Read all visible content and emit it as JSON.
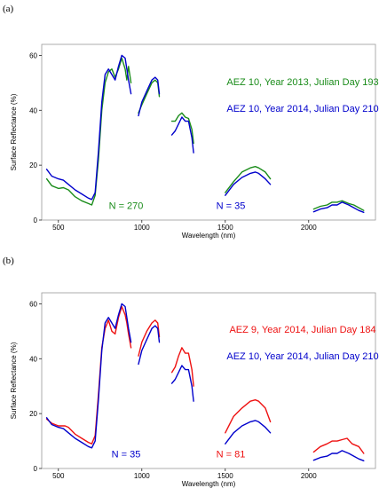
{
  "chart_data": [
    {
      "type": "line",
      "panel_label": "(a)",
      "xlabel": "Wavelength (nm)",
      "ylabel": "Surface Reflectance (%)",
      "xlim": [
        400,
        2400
      ],
      "ylim": [
        0,
        64
      ],
      "xticks": [
        500,
        1000,
        1500,
        2000
      ],
      "yticks": [
        0,
        20,
        40,
        60
      ],
      "series": [
        {
          "name": "AEZ 10, Year 2013, Julian Day 193",
          "color": "#1a8c1a",
          "segments": [
            [
              [
                430,
                15
              ],
              [
                460,
                12.5
              ],
              [
                500,
                11.5
              ],
              [
                530,
                11.8
              ],
              [
                560,
                11
              ],
              [
                600,
                8.5
              ],
              [
                640,
                7
              ],
              [
                680,
                6
              ],
              [
                700,
                5.5
              ],
              [
                720,
                9
              ],
              [
                740,
                22
              ],
              [
                760,
                40
              ],
              [
                780,
                50
              ],
              [
                800,
                54
              ],
              [
                820,
                55
              ],
              [
                840,
                52
              ],
              [
                860,
                55
              ],
              [
                880,
                59
              ],
              [
                900,
                55
              ],
              [
                910,
                51
              ],
              [
                920,
                56
              ],
              [
                935,
                50
              ]
            ],
            [
              [
                980,
                39
              ],
              [
                1000,
                42
              ],
              [
                1030,
                46
              ],
              [
                1060,
                50
              ],
              [
                1080,
                51
              ],
              [
                1095,
                50
              ],
              [
                1105,
                45
              ]
            ],
            [
              [
                1180,
                36
              ],
              [
                1200,
                36
              ],
              [
                1220,
                38
              ],
              [
                1240,
                39
              ],
              [
                1260,
                37.5
              ],
              [
                1280,
                37
              ],
              [
                1300,
                33
              ],
              [
                1310,
                28
              ]
            ],
            [
              [
                1500,
                10
              ],
              [
                1550,
                14
              ],
              [
                1600,
                17.5
              ],
              [
                1650,
                19
              ],
              [
                1680,
                19.5
              ],
              [
                1700,
                19
              ],
              [
                1740,
                17.5
              ],
              [
                1770,
                15
              ]
            ],
            [
              [
                2030,
                4
              ],
              [
                2070,
                5
              ],
              [
                2110,
                5.5
              ],
              [
                2140,
                6.5
              ],
              [
                2170,
                6.5
              ],
              [
                2200,
                7
              ],
              [
                2240,
                6
              ],
              [
                2270,
                5.5
              ],
              [
                2300,
                4.5
              ],
              [
                2330,
                3.5
              ]
            ]
          ]
        },
        {
          "name": "AEZ 10, Year 2014, Julian Day 210",
          "color": "#0000cc",
          "segments": [
            [
              [
                430,
                18.5
              ],
              [
                460,
                16
              ],
              [
                500,
                15
              ],
              [
                530,
                14.5
              ],
              [
                560,
                13
              ],
              [
                600,
                11
              ],
              [
                640,
                9.5
              ],
              [
                680,
                8
              ],
              [
                700,
                7.5
              ],
              [
                720,
                10
              ],
              [
                740,
                25
              ],
              [
                760,
                43
              ],
              [
                780,
                53
              ],
              [
                800,
                55
              ],
              [
                820,
                53
              ],
              [
                840,
                51
              ],
              [
                860,
                56
              ],
              [
                880,
                60
              ],
              [
                900,
                59
              ],
              [
                910,
                55
              ],
              [
                920,
                51
              ],
              [
                935,
                46
              ]
            ],
            [
              [
                980,
                38
              ],
              [
                1000,
                43
              ],
              [
                1030,
                47
              ],
              [
                1060,
                51
              ],
              [
                1080,
                52
              ],
              [
                1095,
                51
              ],
              [
                1105,
                46
              ]
            ],
            [
              [
                1180,
                31
              ],
              [
                1200,
                32.5
              ],
              [
                1220,
                35
              ],
              [
                1240,
                37.5
              ],
              [
                1260,
                36
              ],
              [
                1280,
                36
              ],
              [
                1300,
                30
              ],
              [
                1310,
                24.5
              ]
            ],
            [
              [
                1500,
                9
              ],
              [
                1550,
                13
              ],
              [
                1600,
                15.5
              ],
              [
                1650,
                17
              ],
              [
                1680,
                17.5
              ],
              [
                1700,
                17
              ],
              [
                1740,
                15
              ],
              [
                1770,
                13
              ]
            ],
            [
              [
                2030,
                3
              ],
              [
                2070,
                4
              ],
              [
                2110,
                4.5
              ],
              [
                2140,
                5.5
              ],
              [
                2170,
                5.5
              ],
              [
                2200,
                6.5
              ],
              [
                2240,
                5.5
              ],
              [
                2270,
                4.5
              ],
              [
                2300,
                3.5
              ],
              [
                2330,
                2.8
              ]
            ]
          ]
        }
      ],
      "annotations": [
        {
          "text": "N = 270",
          "color": "#1a8c1a",
          "x": 840,
          "y": 4
        },
        {
          "text": "N = 35",
          "color": "#0000cc",
          "x": 1490,
          "y": 4
        }
      ]
    },
    {
      "type": "line",
      "panel_label": "(b)",
      "xlabel": "Wavelength (nm)",
      "ylabel": "Surface Reflectance (%)",
      "xlim": [
        400,
        2400
      ],
      "ylim": [
        0,
        64
      ],
      "xticks": [
        500,
        1000,
        1500,
        2000
      ],
      "yticks": [
        0,
        20,
        40,
        60
      ],
      "series": [
        {
          "name": "AEZ 9, Year 2014, Julian Day 184",
          "color": "#ee1111",
          "segments": [
            [
              [
                430,
                18
              ],
              [
                460,
                16.5
              ],
              [
                500,
                15.5
              ],
              [
                540,
                15.5
              ],
              [
                560,
                15
              ],
              [
                600,
                12.5
              ],
              [
                640,
                11
              ],
              [
                680,
                9.5
              ],
              [
                700,
                9
              ],
              [
                720,
                12
              ],
              [
                740,
                27
              ],
              [
                760,
                44
              ],
              [
                780,
                51
              ],
              [
                800,
                54
              ],
              [
                820,
                50
              ],
              [
                840,
                49
              ],
              [
                860,
                55
              ],
              [
                880,
                59
              ],
              [
                900,
                56
              ],
              [
                910,
                53
              ],
              [
                920,
                49
              ],
              [
                935,
                44
              ]
            ],
            [
              [
                980,
                41
              ],
              [
                1000,
                46
              ],
              [
                1030,
                50
              ],
              [
                1060,
                53
              ],
              [
                1080,
                54
              ],
              [
                1095,
                53
              ],
              [
                1105,
                48
              ]
            ],
            [
              [
                1180,
                35
              ],
              [
                1200,
                37
              ],
              [
                1220,
                41
              ],
              [
                1240,
                44
              ],
              [
                1260,
                42
              ],
              [
                1280,
                42
              ],
              [
                1300,
                36
              ],
              [
                1310,
                30
              ]
            ],
            [
              [
                1500,
                13
              ],
              [
                1550,
                19
              ],
              [
                1600,
                22
              ],
              [
                1650,
                24.5
              ],
              [
                1680,
                25
              ],
              [
                1700,
                24.5
              ],
              [
                1740,
                22
              ],
              [
                1770,
                17
              ]
            ],
            [
              [
                2030,
                6
              ],
              [
                2070,
                8
              ],
              [
                2110,
                9
              ],
              [
                2140,
                10
              ],
              [
                2170,
                10
              ],
              [
                2200,
                10.5
              ],
              [
                2230,
                11
              ],
              [
                2260,
                9
              ],
              [
                2300,
                8
              ],
              [
                2330,
                5.5
              ]
            ]
          ]
        },
        {
          "name": "AEZ 10, Year 2014, Julian Day 210",
          "color": "#0000cc",
          "segments": [
            [
              [
                430,
                18.5
              ],
              [
                460,
                16
              ],
              [
                500,
                15
              ],
              [
                530,
                14.5
              ],
              [
                560,
                13
              ],
              [
                600,
                11
              ],
              [
                640,
                9.5
              ],
              [
                680,
                8
              ],
              [
                700,
                7.5
              ],
              [
                720,
                10
              ],
              [
                740,
                25
              ],
              [
                760,
                43
              ],
              [
                780,
                53
              ],
              [
                800,
                55
              ],
              [
                820,
                53
              ],
              [
                840,
                51
              ],
              [
                860,
                56
              ],
              [
                880,
                60
              ],
              [
                900,
                59
              ],
              [
                910,
                55
              ],
              [
                920,
                51
              ],
              [
                935,
                46
              ]
            ],
            [
              [
                980,
                38
              ],
              [
                1000,
                43
              ],
              [
                1030,
                47
              ],
              [
                1060,
                51
              ],
              [
                1080,
                52
              ],
              [
                1095,
                51
              ],
              [
                1105,
                46
              ]
            ],
            [
              [
                1180,
                31
              ],
              [
                1200,
                32.5
              ],
              [
                1220,
                35
              ],
              [
                1240,
                37.5
              ],
              [
                1260,
                36
              ],
              [
                1280,
                36
              ],
              [
                1300,
                30
              ],
              [
                1310,
                24.5
              ]
            ],
            [
              [
                1500,
                9
              ],
              [
                1550,
                13
              ],
              [
                1600,
                15.5
              ],
              [
                1650,
                17
              ],
              [
                1680,
                17.5
              ],
              [
                1700,
                17
              ],
              [
                1740,
                15
              ],
              [
                1770,
                13
              ]
            ],
            [
              [
                2030,
                3
              ],
              [
                2070,
                4
              ],
              [
                2110,
                4.5
              ],
              [
                2140,
                5.5
              ],
              [
                2170,
                5.5
              ],
              [
                2200,
                6.5
              ],
              [
                2240,
                5.5
              ],
              [
                2270,
                4.5
              ],
              [
                2300,
                3.5
              ],
              [
                2330,
                2.8
              ]
            ]
          ]
        }
      ],
      "annotations": [
        {
          "text": "N = 35",
          "color": "#0000cc",
          "x": 840,
          "y": 4
        },
        {
          "text": "N = 81",
          "color": "#ee1111",
          "x": 1490,
          "y": 4
        }
      ]
    }
  ]
}
